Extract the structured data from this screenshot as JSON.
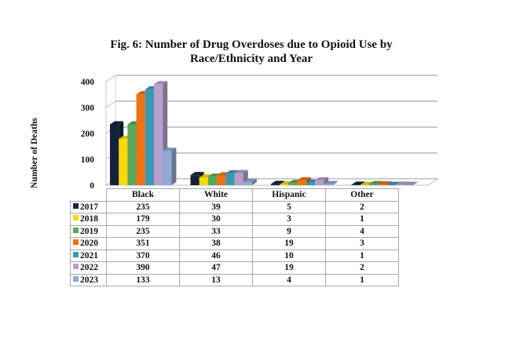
{
  "chart_data": {
    "type": "bar",
    "subtype": "3d-clustered-column-with-data-table",
    "title": "Fig. 6: Number of Drug Overdoses due to Opioid Use by Race/Ethnicity and Year",
    "title_lines": [
      "Fig. 6: Number of Drug Overdoses due to Opioid Use by",
      "Race/Ethnicity and Year"
    ],
    "xlabel": "",
    "ylabel": "Number of Deaths",
    "ylim": [
      0,
      400
    ],
    "yticks": [
      0,
      100,
      200,
      300,
      400
    ],
    "ytick_labels": [
      "0",
      "100",
      "200",
      "300",
      "400"
    ],
    "grid": true,
    "legend": "data-table-left",
    "categories": [
      "Black",
      "White",
      "Hispanic",
      "Other"
    ],
    "series": [
      {
        "name": "2017",
        "color": "#13233f",
        "values": [
          235,
          39,
          5,
          2
        ]
      },
      {
        "name": "2018",
        "color": "#f6d908",
        "values": [
          179,
          30,
          3,
          1
        ]
      },
      {
        "name": "2019",
        "color": "#5aa85c",
        "values": [
          235,
          33,
          9,
          4
        ]
      },
      {
        "name": "2020",
        "color": "#f07214",
        "values": [
          351,
          38,
          19,
          3
        ]
      },
      {
        "name": "2021",
        "color": "#3c98b2",
        "values": [
          370,
          46,
          10,
          1
        ]
      },
      {
        "name": "2022",
        "color": "#b4a0cb",
        "values": [
          390,
          47,
          19,
          2
        ]
      },
      {
        "name": "2023",
        "color": "#90a8d4",
        "values": [
          133,
          13,
          4,
          1
        ]
      }
    ]
  }
}
